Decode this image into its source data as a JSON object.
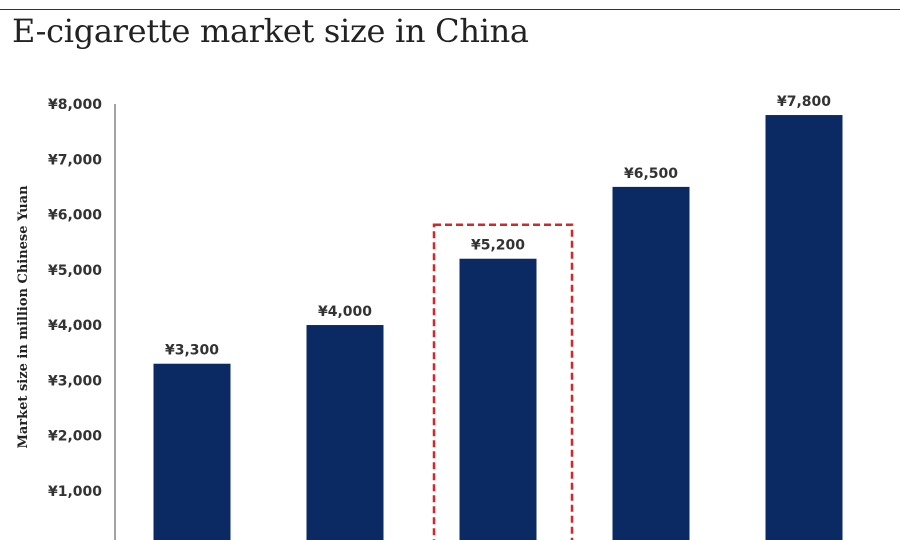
{
  "chart_data": {
    "type": "bar",
    "title": "E-cigarette market size in China",
    "ylabel": "Market size in million Chinese Yuan",
    "xlabel": "",
    "ylim": [
      0,
      8000
    ],
    "y_ticks": [
      "¥1,000",
      "¥2,000",
      "¥3,000",
      "¥4,000",
      "¥5,000",
      "¥6,000",
      "¥7,000",
      "¥8,000"
    ],
    "y_tick_values": [
      1000,
      2000,
      3000,
      4000,
      5000,
      6000,
      7000,
      8000
    ],
    "values": [
      3300,
      4000,
      5200,
      6500,
      7800
    ],
    "data_labels": [
      "¥3,300",
      "¥4,000",
      "¥5,200",
      "¥6,500",
      "¥7,800"
    ],
    "highlighted_index": 2,
    "bar_color": "#0b2a63",
    "highlight_color": "#d62728",
    "grid": false
  }
}
